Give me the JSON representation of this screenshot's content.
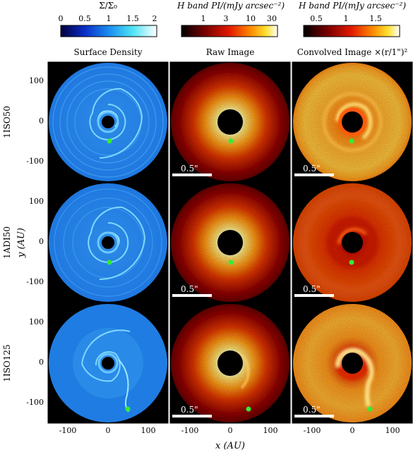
{
  "colorbars": [
    {
      "label": "Σ/Σ₀",
      "ticks": [
        "0",
        "0.5",
        "1",
        "1.5",
        "2"
      ],
      "tick_values": [
        0,
        0.5,
        1,
        1.5,
        2
      ],
      "range": [
        0,
        2
      ],
      "scale": "linear",
      "colormap": "blue"
    },
    {
      "label": "H band PI/(mJy arcsec⁻²)",
      "ticks": [
        "1",
        "3",
        "10",
        "30"
      ],
      "tick_values": [
        1,
        3,
        10,
        30
      ],
      "range": [
        0.5,
        50
      ],
      "scale": "log",
      "colormap": "hot"
    },
    {
      "label": "H band PI/(mJy arcsec⁻²)",
      "ticks": [
        "0.5",
        "1",
        "1.5"
      ],
      "tick_values": [
        0.5,
        1,
        1.5
      ],
      "range": [
        0.3,
        2.0
      ],
      "scale": "linear",
      "colormap": "hot"
    }
  ],
  "column_titles": [
    "Surface Density",
    "Raw Image",
    "Convolved Image ×(r/1\")²"
  ],
  "row_labels": [
    "1ISO50",
    "1ADI50",
    "1ISO125"
  ],
  "axes": {
    "xlabel": "x (AU)",
    "ylabel": "y (AU)",
    "xticks": [
      "-100",
      "0",
      "100"
    ],
    "yticks": [
      "100",
      "0",
      "-100"
    ],
    "xlim": [
      -150,
      150
    ],
    "ylim": [
      -150,
      150
    ]
  },
  "scale_bar_label": "0.5\"",
  "planet_color": "#33ee33",
  "planets": [
    {
      "row": "1ISO50",
      "x_au": 5,
      "y_au": -50
    },
    {
      "row": "1ADI50",
      "x_au": 5,
      "y_au": -50
    },
    {
      "row": "1ISO125",
      "x_au": 50,
      "y_au": -115
    }
  ]
}
